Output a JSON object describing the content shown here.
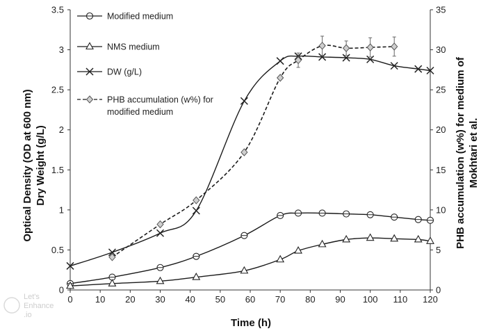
{
  "chart_data": {
    "type": "line",
    "title": "",
    "xlabel": "Time (h)",
    "ylabel_left": [
      "Optical Density (OD at 600 nm)",
      "Dry Weight (g/L)"
    ],
    "ylabel_right": [
      "PHB accumulation (w%) for medium of",
      "Mokhtari et al."
    ],
    "xlim": [
      0,
      120
    ],
    "ylim_left": [
      0,
      3.5
    ],
    "ylim_right": [
      0,
      35
    ],
    "x_ticks": [
      0,
      10,
      20,
      30,
      40,
      50,
      60,
      70,
      80,
      90,
      100,
      110,
      120
    ],
    "y_left_ticks": [
      "0",
      "0.5",
      "1",
      "1.5",
      "2",
      "2.5",
      "3",
      "3.5"
    ],
    "y_right_ticks": [
      0,
      5,
      10,
      15,
      20,
      25,
      30,
      35
    ],
    "grid": false,
    "legend_position": "top-left",
    "series": [
      {
        "name": "Modified medium",
        "axis": "left",
        "marker": "circle",
        "line": "solid",
        "x": [
          0,
          14,
          30,
          42,
          58,
          70,
          76,
          84,
          92,
          100,
          108,
          116,
          120
        ],
        "y": [
          0.08,
          0.16,
          0.28,
          0.42,
          0.68,
          0.93,
          0.96,
          0.96,
          0.95,
          0.94,
          0.91,
          0.88,
          0.87
        ]
      },
      {
        "name": "NMS medium",
        "axis": "left",
        "marker": "triangle",
        "line": "solid",
        "x": [
          0,
          14,
          30,
          42,
          58,
          70,
          76,
          84,
          92,
          100,
          108,
          116,
          120
        ],
        "y": [
          0.05,
          0.08,
          0.11,
          0.16,
          0.24,
          0.38,
          0.49,
          0.57,
          0.63,
          0.65,
          0.64,
          0.63,
          0.61
        ]
      },
      {
        "name": "DW (g/L)",
        "axis": "left",
        "marker": "x",
        "line": "solid",
        "x": [
          0,
          14,
          30,
          42,
          58,
          70,
          76,
          84,
          92,
          100,
          108,
          116,
          120
        ],
        "y": [
          0.3,
          0.47,
          0.71,
          0.99,
          2.36,
          2.86,
          2.92,
          2.91,
          2.9,
          2.88,
          2.8,
          2.76,
          2.74
        ]
      },
      {
        "name": "PHB accumulation (w%) for",
        "name_line2": "modified medium",
        "axis": "right",
        "marker": "diamond",
        "line": "dashed",
        "x": [
          14,
          30,
          42,
          58,
          70,
          76,
          84,
          92,
          100,
          108
        ],
        "y": [
          4.1,
          8.2,
          11.2,
          17.2,
          26.5,
          28.7,
          30.5,
          30.2,
          30.3,
          30.4
        ],
        "err": [
          0,
          0,
          0,
          0,
          0,
          0.9,
          1.2,
          0.9,
          1.2,
          1.2
        ]
      }
    ]
  },
  "watermark": {
    "line1": "Let's",
    "line2": "Enhance",
    "line3": ".io"
  }
}
